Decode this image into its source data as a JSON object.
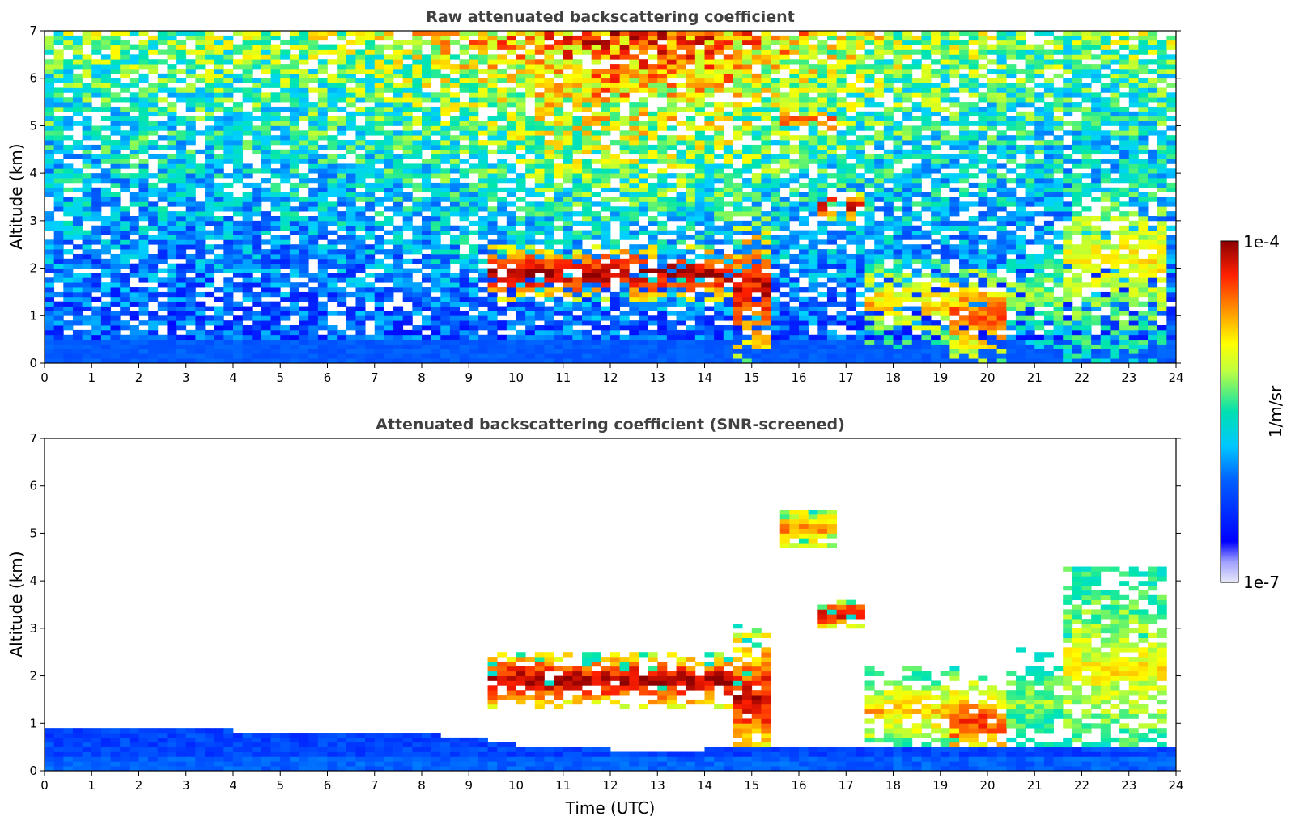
{
  "chart_data": [
    {
      "type": "heatmap",
      "title": "Raw attenuated backscattering coefficient",
      "xlabel": "",
      "ylabel": "Altitude (km)",
      "xlim": [
        0,
        24
      ],
      "ylim": [
        0,
        7
      ],
      "xticks": [
        0,
        1,
        2,
        3,
        4,
        5,
        6,
        7,
        8,
        9,
        10,
        11,
        12,
        13,
        14,
        15,
        16,
        17,
        18,
        19,
        20,
        21,
        22,
        23,
        24
      ],
      "yticks": [
        0,
        1,
        2,
        3,
        4,
        5,
        6,
        7
      ],
      "screened": false,
      "features": [
        {
          "kind": "aerosol_layer",
          "x": [
            9.3,
            14.5
          ],
          "y": [
            1.3,
            2.5
          ],
          "value": 1.0
        },
        {
          "kind": "cloud",
          "x": [
            15.5,
            16.8
          ],
          "y": [
            4.7,
            5.5
          ],
          "value": 0.85
        },
        {
          "kind": "cloud",
          "x": [
            16.4,
            17.3
          ],
          "y": [
            3.0,
            3.6
          ],
          "value": 1.0
        },
        {
          "kind": "cloud",
          "x": [
            14.6,
            15.4
          ],
          "y": [
            0.0,
            3.1
          ],
          "value": 0.95
        },
        {
          "kind": "cloud",
          "x": [
            17.3,
            19.3
          ],
          "y": [
            0.3,
            2.2
          ],
          "value": 0.75
        },
        {
          "kind": "cloud",
          "x": [
            19.2,
            20.4
          ],
          "y": [
            0.0,
            2.0
          ],
          "value": 0.88
        },
        {
          "kind": "cloud",
          "x": [
            20.3,
            21.5
          ],
          "y": [
            0.3,
            2.6
          ],
          "value": 0.6
        },
        {
          "kind": "cloud",
          "x": [
            21.5,
            23.8
          ],
          "y": [
            0.0,
            4.3
          ],
          "value": 0.7
        }
      ]
    },
    {
      "type": "heatmap",
      "title": "Attenuated backscattering coefficient (SNR-screened)",
      "xlabel": "Time (UTC)",
      "ylabel": "Altitude (km)",
      "xlim": [
        0,
        24
      ],
      "ylim": [
        0,
        7
      ],
      "xticks": [
        0,
        1,
        2,
        3,
        4,
        5,
        6,
        7,
        8,
        9,
        10,
        11,
        12,
        13,
        14,
        15,
        16,
        17,
        18,
        19,
        20,
        21,
        22,
        23,
        24
      ],
      "yticks": [
        0,
        1,
        2,
        3,
        4,
        5,
        6,
        7
      ],
      "screened": true,
      "boundary_layer_top": [
        {
          "x": 0,
          "y": 0.95
        },
        {
          "x": 2,
          "y": 0.95
        },
        {
          "x": 4,
          "y": 0.85
        },
        {
          "x": 6,
          "y": 0.75
        },
        {
          "x": 8,
          "y": 0.8
        },
        {
          "x": 9,
          "y": 0.7
        },
        {
          "x": 10,
          "y": 0.55
        },
        {
          "x": 12,
          "y": 0.45
        },
        {
          "x": 14,
          "y": 0.45
        },
        {
          "x": 17,
          "y": 0.55
        },
        {
          "x": 24,
          "y": 0.55
        }
      ]
    }
  ],
  "colorbar": {
    "label": "1/m/sr",
    "max_label": "1e-4",
    "min_label": "1e-7",
    "range": [
      1e-07,
      0.0001
    ],
    "colormap": "jet",
    "colors": [
      "#e8e8f8",
      "#0000ff",
      "#00a0ff",
      "#00e0e0",
      "#ffff00",
      "#ff8000",
      "#ff0000",
      "#8b0000"
    ]
  }
}
